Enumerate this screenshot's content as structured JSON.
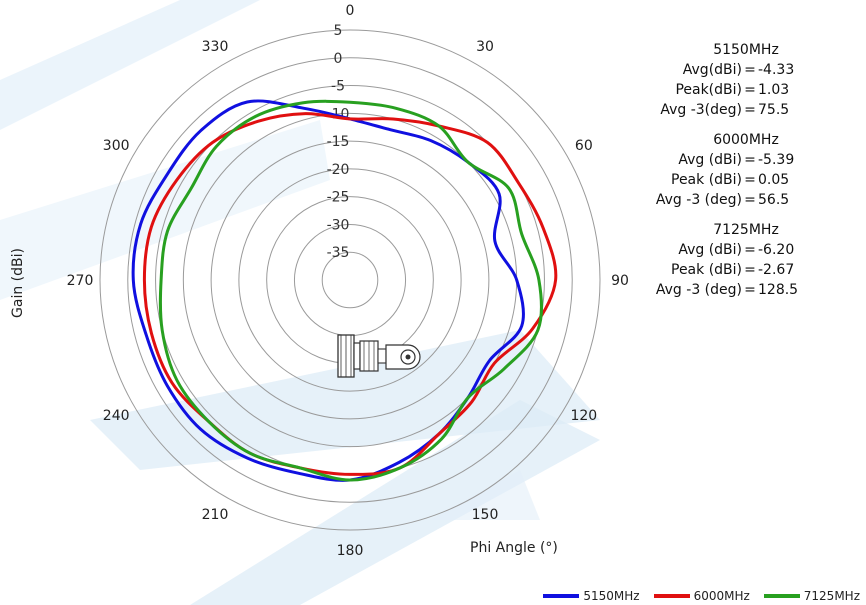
{
  "chart_data": {
    "type": "polar",
    "xlabel": "Phi Angle (°)",
    "ylabel": "Gain  (dBi)",
    "angle_labels": [
      "0",
      "30",
      "60",
      "90",
      "120",
      "150",
      "180",
      "210",
      "240",
      "270",
      "300",
      "330"
    ],
    "radial_ticks": [
      "5",
      "0",
      "-5",
      "-10",
      "-15",
      "-20",
      "-25",
      "-30",
      "-35"
    ],
    "rlim": [
      -40,
      5
    ],
    "legend_position": "bottom-right",
    "series": [
      {
        "name": "5150MHz",
        "color": "#1010e0",
        "angles": [
          0,
          15,
          30,
          45,
          60,
          75,
          90,
          105,
          120,
          135,
          150,
          165,
          180,
          195,
          210,
          225,
          240,
          255,
          270,
          285,
          300,
          315,
          330,
          345,
          360
        ],
        "values": [
          -11,
          -12,
          -11,
          -10,
          -9,
          -13,
          -10,
          -8,
          -11,
          -10,
          -8,
          -6,
          -4,
          -4,
          -3,
          -2,
          -2,
          -2,
          -1,
          -1,
          -2,
          -2,
          -3,
          -8,
          -11
        ]
      },
      {
        "name": "6000MHz",
        "color": "#e01010",
        "angles": [
          0,
          15,
          30,
          45,
          60,
          75,
          90,
          105,
          120,
          135,
          150,
          165,
          180,
          195,
          210,
          225,
          240,
          255,
          270,
          285,
          300,
          315,
          330,
          345,
          360
        ],
        "values": [
          -11,
          -10,
          -8,
          -5,
          -5,
          -4,
          -3,
          -6,
          -10,
          -9,
          -8,
          -5,
          -5,
          -5,
          -4,
          -4,
          -3,
          -3,
          -3,
          -3,
          -4,
          -5,
          -7,
          -9,
          -11
        ]
      },
      {
        "name": "7125MHz",
        "color": "#28a020",
        "angles": [
          0,
          15,
          30,
          45,
          60,
          75,
          90,
          105,
          120,
          135,
          150,
          165,
          180,
          195,
          210,
          225,
          240,
          255,
          270,
          285,
          300,
          315,
          330,
          345,
          360
        ],
        "values": [
          -8,
          -8,
          -8,
          -10,
          -7,
          -8,
          -6,
          -5,
          -8,
          -10,
          -7,
          -5,
          -4,
          -5,
          -4,
          -4,
          -4,
          -5,
          -6,
          -6,
          -7,
          -6,
          -6,
          -7,
          -8
        ]
      }
    ]
  },
  "stats": [
    {
      "title": "5150MHz",
      "rows": [
        {
          "label": "Avg(dBi)",
          "value": "-4.33"
        },
        {
          "label": "Peak(dBi)",
          "value": "1.03"
        },
        {
          "label": "Avg -3(deg)",
          "value": "75.5"
        }
      ]
    },
    {
      "title": "6000MHz",
      "rows": [
        {
          "label": "Avg (dBi)",
          "value": "-5.39"
        },
        {
          "label": "Peak (dBi)",
          "value": "0.05"
        },
        {
          "label": "Avg -3 (deg)",
          "value": "56.5"
        }
      ]
    },
    {
      "title": "7125MHz",
      "rows": [
        {
          "label": "Avg (dBi)",
          "value": "-6.20"
        },
        {
          "label": "Peak (dBi)",
          "value": "-2.67"
        },
        {
          "label": "Avg -3 (deg)",
          "value": "128.5"
        }
      ]
    }
  ]
}
